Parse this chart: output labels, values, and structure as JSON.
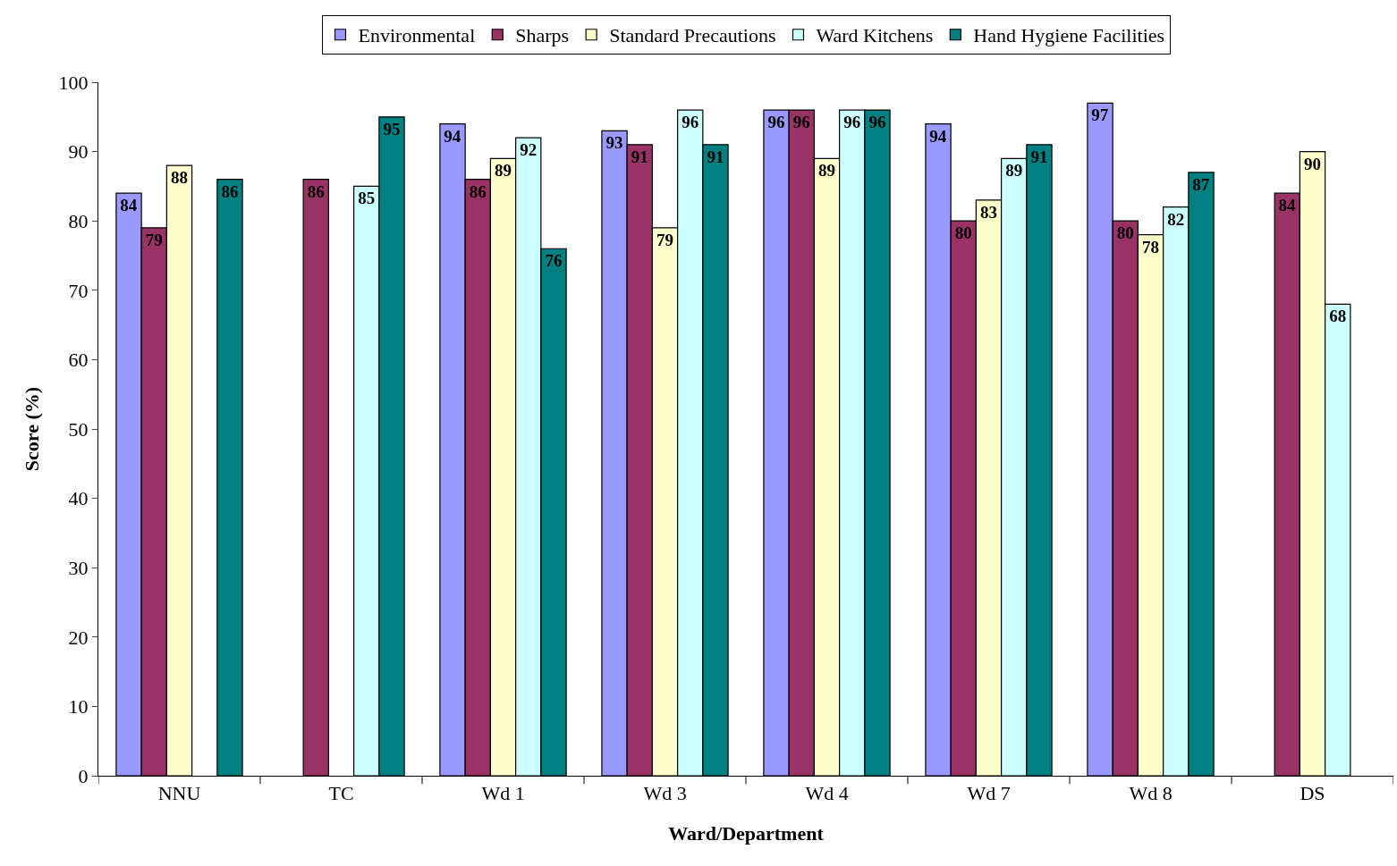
{
  "chart_data": {
    "type": "bar",
    "xlabel": "Ward/Department",
    "ylabel": "Score (%)",
    "categories": [
      "NNU",
      "TC",
      "Wd 1",
      "Wd 3",
      "Wd 4",
      "Wd 7",
      "Wd 8",
      "DS"
    ],
    "series": [
      {
        "name": "Environmental",
        "color": "#9999ff",
        "values": [
          84,
          null,
          94,
          93,
          96,
          94,
          97,
          null
        ]
      },
      {
        "name": "Sharps",
        "color": "#993366",
        "values": [
          79,
          86,
          86,
          91,
          96,
          80,
          80,
          84
        ]
      },
      {
        "name": "Standard Precautions",
        "color": "#ffffcc",
        "values": [
          88,
          null,
          89,
          79,
          89,
          83,
          78,
          90
        ]
      },
      {
        "name": "Ward Kitchens",
        "color": "#ccffff",
        "values": [
          null,
          85,
          92,
          96,
          96,
          89,
          82,
          68
        ]
      },
      {
        "name": "Hand Hygiene Facilities",
        "color": "#008080",
        "values": [
          86,
          95,
          76,
          91,
          96,
          91,
          87,
          null
        ]
      }
    ],
    "ylim": [
      0,
      100
    ],
    "yticks": [
      0,
      10,
      20,
      30,
      40,
      50,
      60,
      70,
      80,
      90,
      100
    ],
    "data_labels": true,
    "legend": "top"
  }
}
